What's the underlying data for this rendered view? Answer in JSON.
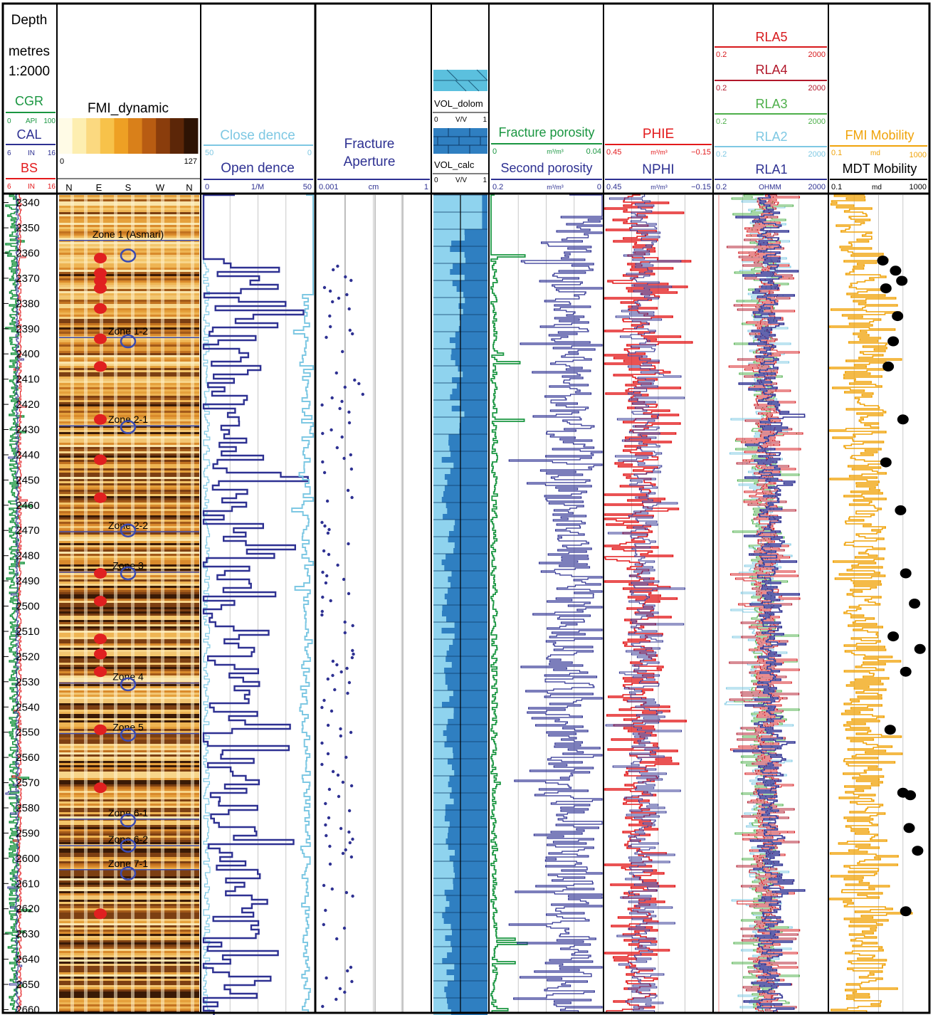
{
  "depth_track": {
    "title_lines": [
      "Depth",
      "metres",
      "1:2000"
    ],
    "curves": [
      {
        "name": "CGR",
        "min": "0",
        "unit": "API",
        "max": "100",
        "color": "#1a9641"
      },
      {
        "name": "CAL",
        "min": "6",
        "unit": "IN",
        "max": "16",
        "color": "#2e3192"
      },
      {
        "name": "BS",
        "min": "6",
        "unit": "IN",
        "max": "16",
        "color": "#e31a1c"
      }
    ],
    "depth_labels": [
      "2340",
      "2350",
      "2360",
      "2370",
      "2380",
      "2390",
      "2400",
      "2410",
      "2420",
      "2430",
      "2440",
      "2450",
      "2460",
      "2470",
      "2480",
      "2490",
      "2500",
      "2510",
      "2520",
      "2530",
      "2540",
      "2550",
      "2560",
      "2570",
      "2580",
      "2590",
      "2600",
      "2610",
      "2620",
      "2630",
      "2640",
      "2650",
      "2660"
    ]
  },
  "fmi_track": {
    "title": "FMI_dynamic",
    "scale_min": "0",
    "scale_max": "127",
    "azimuth_labels": [
      "N",
      "E",
      "S",
      "W",
      "N"
    ]
  },
  "density_track": {
    "close": {
      "name": "Close dence",
      "min": "50",
      "max": "0",
      "color": "#7ec8e3"
    },
    "open": {
      "name": "Open dence",
      "min": "0",
      "unit": "1/M",
      "max": "50",
      "color": "#2e3192"
    }
  },
  "aperture_track": {
    "title_lines": [
      "Fracture",
      "Aperture"
    ],
    "min": "0.001",
    "unit": "cm",
    "max": "1",
    "color": "#2e3192"
  },
  "lithology_track": {
    "dolom": {
      "name": "VOL_dolom",
      "min": "0",
      "unit": "V/V",
      "max": "1",
      "color": "#5bc0de"
    },
    "calc": {
      "name": "VOL_calc",
      "min": "0",
      "unit": "V/V",
      "max": "1",
      "color": "#2f7fc1"
    }
  },
  "porosity_track": {
    "fracture": {
      "name": "Fracture porosity",
      "min": "0",
      "unit": "m³/m³",
      "max": "0.04",
      "color": "#1a9641"
    },
    "second": {
      "name": "Second porosity",
      "min": "0.2",
      "unit": "m³/m³",
      "max": "0",
      "color": "#2e3192"
    }
  },
  "phie_track": {
    "phie": {
      "name": "PHIE",
      "min": "0.45",
      "unit": "m³/m³",
      "max": "−0.15",
      "color": "#e31a1c"
    },
    "nphi": {
      "name": "NPHI",
      "min": "0.45",
      "unit": "m³/m³",
      "max": "−0.15",
      "color": "#2e3192"
    }
  },
  "resistivity_track": {
    "curves": [
      {
        "name": "RLA5",
        "min": "0.2",
        "max": "2000",
        "unit": "",
        "color": "#d7191c"
      },
      {
        "name": "RLA4",
        "min": "0.2",
        "max": "2000",
        "unit": "",
        "color": "#b2182b"
      },
      {
        "name": "RLA3",
        "min": "0.2",
        "max": "2000",
        "unit": "",
        "color": "#4daf4a"
      },
      {
        "name": "RLA2",
        "min": "0.2",
        "max": "2000",
        "unit": "",
        "color": "#7ec8e3"
      },
      {
        "name": "RLA1",
        "min": "0.2",
        "max": "2000",
        "unit": "OHMM",
        "color": "#2e3192"
      }
    ]
  },
  "mobility_track": {
    "fmi": {
      "name": "FMI Mobility",
      "min": "0.1",
      "unit": "md",
      "max": "1000",
      "color": "#f0a30a"
    },
    "mdt": {
      "name": "MDT Mobility",
      "min": "0.1",
      "unit": "md",
      "max": "1000",
      "color": "#000000"
    }
  },
  "zones": [
    {
      "label": "Zone 1 (Asmari)",
      "depth": 2355
    },
    {
      "label": "Zone 1-2",
      "depth": 2393.5
    },
    {
      "label": "Zone 2-1",
      "depth": 2428.5
    },
    {
      "label": "Zone 2-2",
      "depth": 2470.5
    },
    {
      "label": "Zone 3",
      "depth": 2486.5
    },
    {
      "label": "Zone 4",
      "depth": 2530.5
    },
    {
      "label": "Zone 5",
      "depth": 2550.5
    },
    {
      "label": "Zone 6-1",
      "depth": 2584.5
    },
    {
      "label": "Zone 6-2",
      "depth": 2595
    },
    {
      "label": "Zone 7-1",
      "depth": 2604.5
    }
  ],
  "chart_data": {
    "type": "line",
    "title": "",
    "ylabel": "Depth metres",
    "depth_range": [
      2337,
      2661
    ],
    "depth_ticks": [
      2340,
      2350,
      2360,
      2370,
      2380,
      2390,
      2400,
      2410,
      2420,
      2430,
      2440,
      2450,
      2460,
      2470,
      2480,
      2490,
      2500,
      2510,
      2520,
      2530,
      2540,
      2550,
      2560,
      2570,
      2580,
      2590,
      2600,
      2610,
      2620,
      2630,
      2640,
      2650,
      2660
    ],
    "fmi_fracture_depths": [
      2362,
      2368,
      2371,
      2374,
      2382,
      2394,
      2405,
      2426,
      2442,
      2457,
      2487,
      2498,
      2513,
      2519,
      2526,
      2549,
      2572,
      2622
    ],
    "zone_marker_depths": [
      2361,
      2395,
      2429,
      2470,
      2487,
      2531,
      2551,
      2585,
      2595,
      2606
    ],
    "mdt_mobility": {
      "unit": "md",
      "scale": "log",
      "range": [
        0.1,
        1000
      ],
      "points": [
        {
          "depth": 2363,
          "value": 15
        },
        {
          "depth": 2367,
          "value": 50
        },
        {
          "depth": 2371,
          "value": 90
        },
        {
          "depth": 2374,
          "value": 20
        },
        {
          "depth": 2385,
          "value": 60
        },
        {
          "depth": 2395,
          "value": 40
        },
        {
          "depth": 2405,
          "value": 25
        },
        {
          "depth": 2426,
          "value": 100
        },
        {
          "depth": 2443,
          "value": 20
        },
        {
          "depth": 2462,
          "value": 80
        },
        {
          "depth": 2487,
          "value": 130
        },
        {
          "depth": 2499,
          "value": 300
        },
        {
          "depth": 2512,
          "value": 40
        },
        {
          "depth": 2517,
          "value": 500
        },
        {
          "depth": 2526,
          "value": 130
        },
        {
          "depth": 2549,
          "value": 30
        },
        {
          "depth": 2574,
          "value": 100
        },
        {
          "depth": 2575,
          "value": 200
        },
        {
          "depth": 2588,
          "value": 180
        },
        {
          "depth": 2597,
          "value": 400
        },
        {
          "depth": 2621,
          "value": 130
        }
      ]
    }
  }
}
